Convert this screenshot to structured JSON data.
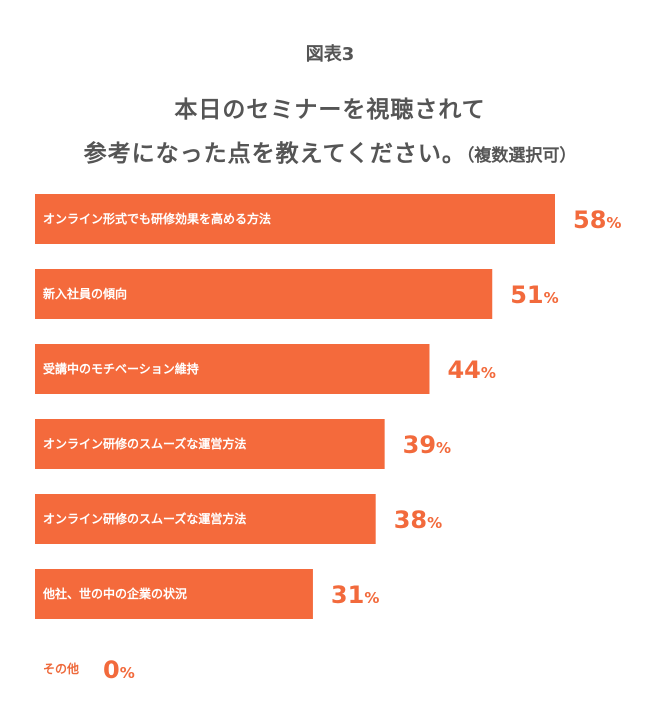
{
  "header": {
    "figure_label": "図表3",
    "title_line_1": "本日のセミナーを視聴されて",
    "title_line_2": "参考になった点を教えてください。",
    "title_note": "（複数選択可）"
  },
  "chart_data": {
    "type": "bar",
    "orientation": "horizontal",
    "categories": [
      "オンライン形式でも研修効果を高める方法",
      "新入社員の傾向",
      "受講中のモチベーション維持",
      "オンライン研修のスムーズな運営方法",
      "オンライン研修のスムーズな運営方法",
      "他社、世の中の企業の状況",
      "その他"
    ],
    "values": [
      58,
      51,
      44,
      39,
      38,
      31,
      0
    ],
    "unit": "%",
    "xlim": [
      0,
      58
    ],
    "grid": false,
    "legend": "none",
    "bar_color": "#f46a3c",
    "value_color": "#f26a3c",
    "zero_label_color": "#ee6a3c"
  }
}
